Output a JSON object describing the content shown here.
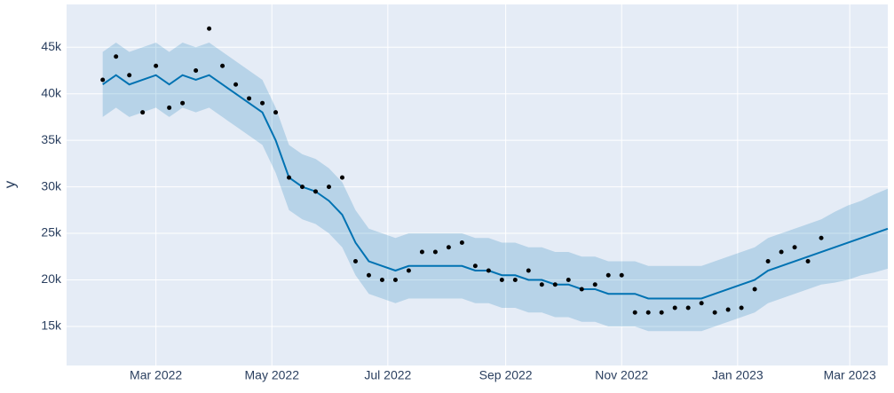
{
  "chart_data": {
    "type": "forecast",
    "y_label": "y",
    "x": [
      "2022-02-01",
      "2022-02-08",
      "2022-02-15",
      "2022-02-22",
      "2022-03-01",
      "2022-03-08",
      "2022-03-15",
      "2022-03-22",
      "2022-03-29",
      "2022-04-05",
      "2022-04-12",
      "2022-04-19",
      "2022-04-26",
      "2022-05-03",
      "2022-05-10",
      "2022-05-17",
      "2022-05-24",
      "2022-05-31",
      "2022-06-07",
      "2022-06-14",
      "2022-06-21",
      "2022-06-28",
      "2022-07-05",
      "2022-07-12",
      "2022-07-19",
      "2022-07-26",
      "2022-08-02",
      "2022-08-09",
      "2022-08-16",
      "2022-08-23",
      "2022-08-30",
      "2022-09-06",
      "2022-09-13",
      "2022-09-20",
      "2022-09-27",
      "2022-10-04",
      "2022-10-11",
      "2022-10-18",
      "2022-10-25",
      "2022-11-01",
      "2022-11-08",
      "2022-11-15",
      "2022-11-22",
      "2022-11-29",
      "2022-12-06",
      "2022-12-13",
      "2022-12-20",
      "2022-12-27",
      "2023-01-03",
      "2023-01-10",
      "2023-01-17",
      "2023-01-24",
      "2023-01-31",
      "2023-02-07",
      "2023-02-14",
      "2023-02-21",
      "2023-02-28",
      "2023-03-07",
      "2023-03-14",
      "2023-03-21"
    ],
    "observed": [
      41500,
      44000,
      42000,
      38000,
      43000,
      38500,
      39000,
      42500,
      47000,
      43000,
      41000,
      39500,
      39000,
      38000,
      31000,
      30000,
      29500,
      30000,
      31000,
      22000,
      20500,
      20000,
      20000,
      21000,
      23000,
      23000,
      23500,
      24000,
      21500,
      21000,
      20000,
      20000,
      21000,
      19500,
      19500,
      20000,
      19000,
      19500,
      20500,
      20500,
      16500,
      16500,
      16500,
      17000,
      17000,
      17500,
      16500,
      16800,
      17000,
      19000,
      22000,
      23000,
      23500,
      22000,
      24500,
      null,
      null,
      null,
      null,
      null
    ],
    "forecast": [
      41000,
      42000,
      41000,
      41500,
      42000,
      41000,
      42000,
      41500,
      42000,
      41000,
      40000,
      39000,
      38000,
      35000,
      31000,
      30000,
      29500,
      28500,
      27000,
      24000,
      22000,
      21500,
      21000,
      21500,
      21500,
      21500,
      21500,
      21500,
      21000,
      21000,
      20500,
      20500,
      20000,
      20000,
      19500,
      19500,
      19000,
      19000,
      18500,
      18500,
      18500,
      18000,
      18000,
      18000,
      18000,
      18000,
      18500,
      19000,
      19500,
      20000,
      21000,
      21500,
      22000,
      22500,
      23000,
      23500,
      24000,
      24500,
      25000,
      25500
    ],
    "forecast_lower": [
      37500,
      38500,
      37500,
      38000,
      38500,
      37500,
      38500,
      38000,
      38500,
      37500,
      36500,
      35500,
      34500,
      31500,
      27500,
      26500,
      26000,
      25000,
      23500,
      20500,
      18500,
      18000,
      17500,
      18000,
      18000,
      18000,
      18000,
      18000,
      17500,
      17500,
      17000,
      17000,
      16500,
      16500,
      16000,
      16000,
      15500,
      15500,
      15000,
      15000,
      15000,
      14500,
      14500,
      14500,
      14500,
      14500,
      15000,
      15500,
      16000,
      16500,
      17500,
      18000,
      18500,
      19000,
      19500,
      19700,
      20000,
      20500,
      20800,
      21200
    ],
    "forecast_upper": [
      44500,
      45500,
      44500,
      45000,
      45500,
      44500,
      45500,
      45000,
      45500,
      44500,
      43500,
      42500,
      41500,
      38500,
      34500,
      33500,
      33000,
      32000,
      30500,
      27500,
      25500,
      25000,
      24500,
      25000,
      25000,
      25000,
      25000,
      25000,
      24500,
      24500,
      24000,
      24000,
      23500,
      23500,
      23000,
      23000,
      22500,
      22500,
      22000,
      22000,
      22000,
      21500,
      21500,
      21500,
      21500,
      21500,
      22000,
      22500,
      23000,
      23500,
      24500,
      25000,
      25500,
      26000,
      26500,
      27300,
      28000,
      28500,
      29200,
      29800
    ],
    "observed_color": "#000000",
    "forecast_color": "#0072B2",
    "band_color": "rgba(0,114,178,0.2)",
    "xlim": [
      "2022-01-13",
      "2023-03-21"
    ],
    "xticks": [
      {
        "value": "2022-03-01",
        "label": "Mar 2022"
      },
      {
        "value": "2022-05-01",
        "label": "May 2022"
      },
      {
        "value": "2022-07-01",
        "label": "Jul 2022"
      },
      {
        "value": "2022-09-01",
        "label": "Sep 2022"
      },
      {
        "value": "2022-11-01",
        "label": "Nov 2022"
      },
      {
        "value": "2023-01-01",
        "label": "Jan 2023"
      },
      {
        "value": "2023-03-01",
        "label": "Mar 2023"
      }
    ],
    "ylim": [
      10800,
      49600
    ],
    "yticks": [
      {
        "value": 15000,
        "label": "15k"
      },
      {
        "value": 20000,
        "label": "20k"
      },
      {
        "value": 25000,
        "label": "25k"
      },
      {
        "value": 30000,
        "label": "30k"
      },
      {
        "value": 35000,
        "label": "35k"
      },
      {
        "value": 40000,
        "label": "40k"
      },
      {
        "value": 45000,
        "label": "45k"
      }
    ],
    "grid": true
  }
}
